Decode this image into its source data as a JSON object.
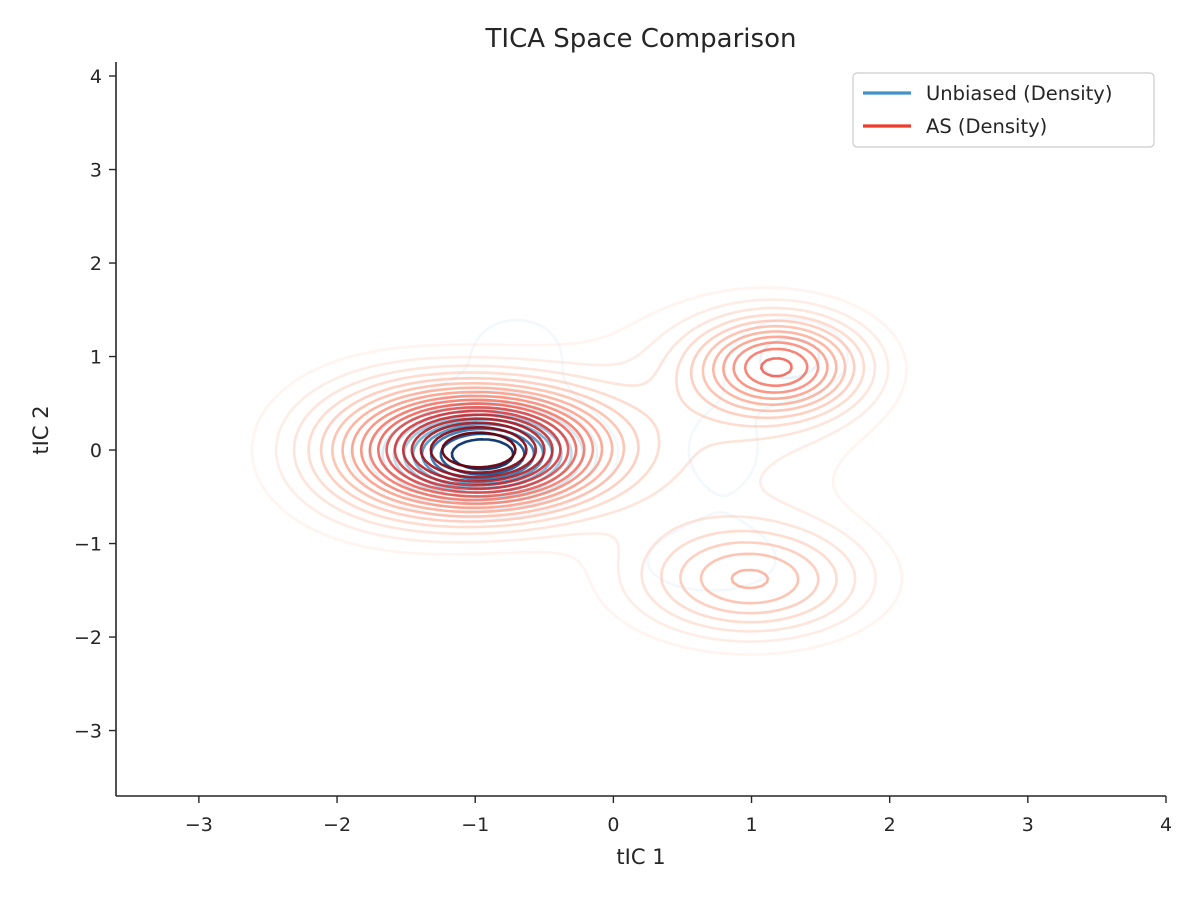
{
  "chart_data": {
    "type": "contour",
    "title": "TICA Space Comparison",
    "xlabel": "tIC 1",
    "ylabel": "tIC 2",
    "xlim": [
      -3.6,
      4.0
    ],
    "ylim": [
      -3.7,
      4.15
    ],
    "x_ticks": [
      -3,
      -2,
      -1,
      0,
      1,
      2,
      3,
      4
    ],
    "y_ticks": [
      -3,
      -2,
      -1,
      0,
      1,
      2,
      3,
      4
    ],
    "x_tick_labels": [
      "−3",
      "−2",
      "−1",
      "0",
      "1",
      "2",
      "3",
      "4"
    ],
    "y_tick_labels": [
      "−3",
      "−2",
      "−1",
      "0",
      "1",
      "2",
      "3",
      "4"
    ],
    "grid": false,
    "legend_position": "top-right",
    "series": [
      {
        "name": "Unbiased (Density)",
        "colormap": "Blues",
        "legend_color": "#4292c6",
        "components": [
          {
            "mean": [
              -0.95,
              -0.05
            ],
            "sd": [
              0.42,
              0.3
            ],
            "weight": 0.62
          },
          {
            "mean": [
              -0.7,
              1.0
            ],
            "sd": [
              0.45,
              0.55
            ],
            "weight": 0.12
          },
          {
            "mean": [
              0.8,
              0.0
            ],
            "sd": [
              0.35,
              0.6
            ],
            "weight": 0.1
          },
          {
            "mean": [
              1.3,
              1.0
            ],
            "sd": [
              0.3,
              0.3
            ],
            "weight": 0.08
          },
          {
            "mean": [
              0.7,
              -1.2
            ],
            "sd": [
              0.45,
              0.3
            ],
            "weight": 0.08
          }
        ],
        "levels": 10
      },
      {
        "name": "AS (Density)",
        "colormap": "Reds",
        "legend_color": "#ef3b2c",
        "components": [
          {
            "mean": [
              -0.9,
              0.0
            ],
            "sd": [
              0.55,
              0.42
            ],
            "weight": 0.42
          },
          {
            "mean": [
              -1.6,
              0.0
            ],
            "sd": [
              0.55,
              0.55
            ],
            "weight": 0.14
          },
          {
            "mean": [
              1.2,
              0.9
            ],
            "sd": [
              0.4,
              0.35
            ],
            "weight": 0.14
          },
          {
            "mean": [
              1.0,
              -1.4
            ],
            "sd": [
              0.55,
              0.4
            ],
            "weight": 0.14
          },
          {
            "mean": [
              0.6,
              0.2
            ],
            "sd": [
              0.8,
              0.9
            ],
            "weight": 0.16
          }
        ],
        "levels": 18
      }
    ]
  }
}
